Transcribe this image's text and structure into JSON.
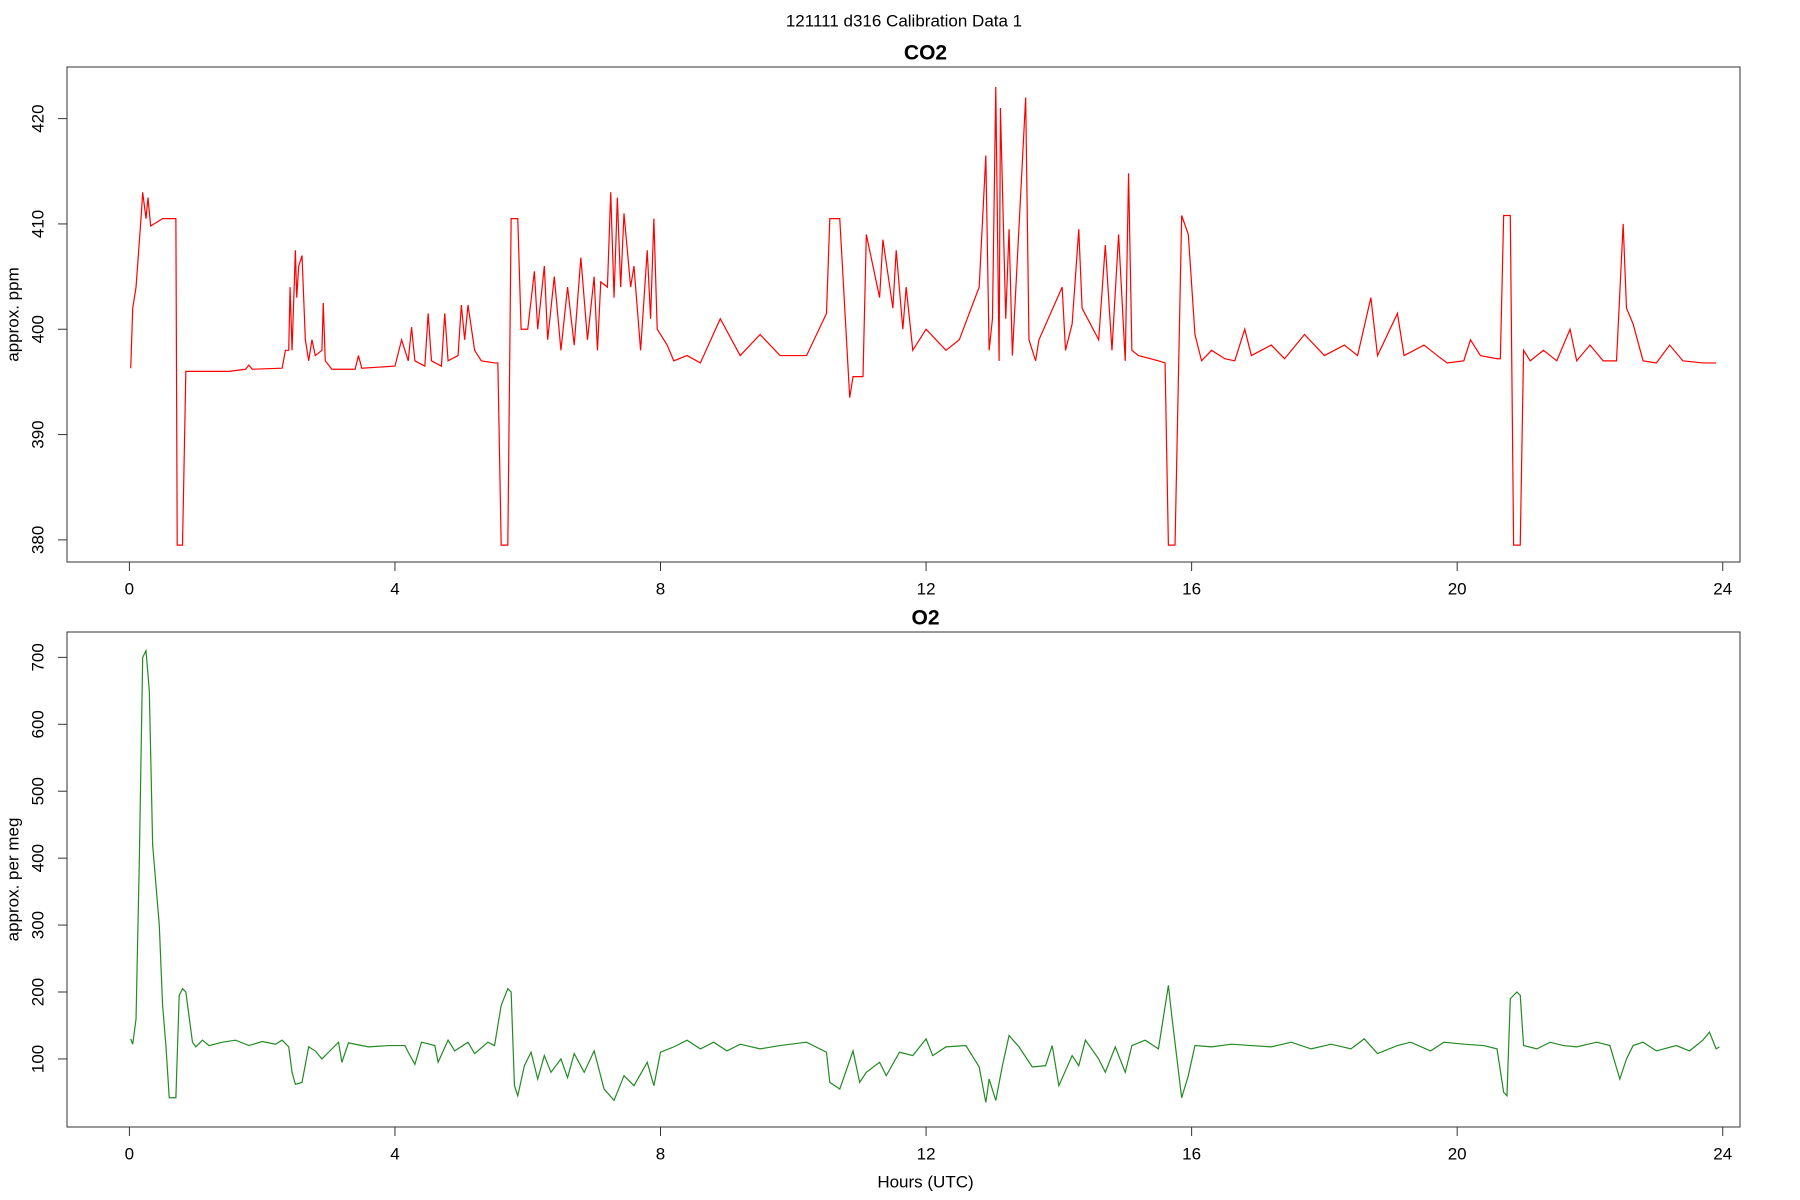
{
  "title": "121111   d316   Calibration Data 1",
  "chart_data": [
    {
      "type": "line",
      "title": "CO2",
      "ylabel": "approx. ppm",
      "color": "#ff0000",
      "xlim": [
        -0.94,
        24.26
      ],
      "xticks": [
        0,
        4,
        8,
        12,
        16,
        20,
        24
      ],
      "ylim": [
        377.9,
        424.9
      ],
      "yticks": [
        380,
        390,
        400,
        410,
        420
      ],
      "x": [
        0.02,
        0.05,
        0.1,
        0.18,
        0.2,
        0.25,
        0.28,
        0.32,
        0.5,
        0.65,
        0.7,
        0.72,
        0.8,
        0.85,
        1.5,
        1.75,
        1.8,
        1.85,
        2.3,
        2.35,
        2.4,
        2.42,
        2.45,
        2.5,
        2.52,
        2.55,
        2.6,
        2.65,
        2.7,
        2.75,
        2.8,
        2.9,
        2.92,
        2.95,
        3.05,
        3.4,
        3.45,
        3.5,
        4.0,
        4.1,
        4.2,
        4.25,
        4.3,
        4.45,
        4.5,
        4.55,
        4.7,
        4.75,
        4.8,
        4.95,
        5.0,
        5.05,
        5.1,
        5.2,
        5.3,
        5.5,
        5.55,
        5.6,
        5.7,
        5.75,
        5.85,
        5.9,
        6.0,
        6.1,
        6.15,
        6.25,
        6.3,
        6.4,
        6.5,
        6.6,
        6.7,
        6.8,
        6.9,
        7.0,
        7.05,
        7.1,
        7.2,
        7.25,
        7.3,
        7.35,
        7.4,
        7.45,
        7.55,
        7.6,
        7.7,
        7.8,
        7.85,
        7.9,
        7.95,
        8.1,
        8.2,
        8.4,
        8.6,
        8.9,
        9.2,
        9.5,
        9.8,
        10.2,
        10.5,
        10.55,
        10.7,
        10.85,
        10.9,
        11.05,
        11.1,
        11.3,
        11.35,
        11.5,
        11.55,
        11.65,
        11.7,
        11.8,
        12.0,
        12.3,
        12.5,
        12.8,
        12.9,
        12.95,
        13.0,
        13.05,
        13.1,
        13.12,
        13.2,
        13.25,
        13.3,
        13.5,
        13.55,
        13.65,
        13.7,
        14.05,
        14.1,
        14.2,
        14.3,
        14.35,
        14.6,
        14.7,
        14.8,
        14.9,
        15.0,
        15.05,
        15.1,
        15.2,
        15.5,
        15.6,
        15.65,
        15.75,
        15.85,
        15.95,
        16.05,
        16.15,
        16.3,
        16.5,
        16.65,
        16.8,
        16.9,
        17.2,
        17.4,
        17.7,
        18.0,
        18.3,
        18.5,
        18.7,
        18.8,
        19.1,
        19.2,
        19.5,
        19.7,
        19.85,
        20.1,
        20.2,
        20.35,
        20.6,
        20.65,
        20.7,
        20.8,
        20.85,
        20.95,
        21.0,
        21.1,
        21.3,
        21.4,
        21.5,
        21.7,
        21.8,
        22.0,
        22.2,
        22.4,
        22.5,
        22.55,
        22.65,
        22.8,
        23.0,
        23.2,
        23.4,
        23.7,
        23.9
      ],
      "values": [
        396.3,
        402,
        404,
        411,
        413,
        410.5,
        412.5,
        409.8,
        410.5,
        410.5,
        410.5,
        379.5,
        379.5,
        396,
        396,
        396.2,
        396.6,
        396.2,
        396.3,
        398,
        398,
        404,
        398,
        407.5,
        403,
        406,
        407,
        399,
        397,
        399,
        397.5,
        398,
        402.5,
        397,
        396.2,
        396.2,
        397.5,
        396.3,
        396.5,
        399,
        397,
        400.2,
        397,
        396.5,
        401.5,
        397,
        396.5,
        401.5,
        397,
        397.5,
        402.3,
        399,
        402.3,
        398,
        397,
        396.8,
        396.8,
        379.5,
        379.5,
        410.5,
        410.5,
        400,
        400,
        405.5,
        400,
        406,
        399,
        405,
        398,
        404,
        398.5,
        406.8,
        399,
        405,
        398,
        404.5,
        404,
        413,
        403,
        412.5,
        404,
        411,
        404,
        406,
        398,
        407.5,
        401,
        410.5,
        400,
        398.5,
        397,
        397.5,
        396.8,
        401,
        397.5,
        399.5,
        397.5,
        397.5,
        401.5,
        410.5,
        410.5,
        393.5,
        395.5,
        395.5,
        409,
        403,
        408.5,
        402,
        407.5,
        400,
        404,
        398,
        400,
        398,
        399,
        404,
        416.5,
        398,
        401,
        423,
        397,
        421,
        401,
        409.5,
        397.5,
        422,
        399,
        397,
        399,
        404,
        398,
        400.5,
        409.5,
        402,
        399,
        408,
        398,
        409,
        397,
        414.8,
        398,
        397.5,
        397,
        396.8,
        379.5,
        379.5,
        410.8,
        409,
        399.5,
        397,
        398,
        397.2,
        397,
        400,
        397.5,
        398.5,
        397.2,
        399.5,
        397.5,
        398.5,
        397.5,
        403,
        397.5,
        401.5,
        397.5,
        398.5,
        397.5,
        396.8,
        397,
        399,
        397.5,
        397.2,
        397.2,
        410.8,
        410.8,
        379.5,
        379.5,
        398,
        397,
        398,
        397.5,
        397,
        400,
        397,
        398.5,
        397,
        397,
        410,
        402,
        400.5,
        397,
        396.8,
        398.5,
        397,
        396.8,
        396.8
      ]
    },
    {
      "type": "line",
      "title": "O2",
      "ylabel": "approx. per meg",
      "xlabel": "Hours (UTC)",
      "color": "#228b22",
      "xlim": [
        -0.94,
        24.26
      ],
      "xticks": [
        0,
        4,
        8,
        12,
        16,
        20,
        24
      ],
      "ylim": [
        -1.7,
        737.9
      ],
      "yticks": [
        100,
        200,
        300,
        400,
        500,
        600,
        700
      ],
      "x": [
        0.02,
        0.05,
        0.1,
        0.15,
        0.2,
        0.25,
        0.3,
        0.35,
        0.45,
        0.5,
        0.55,
        0.6,
        0.7,
        0.75,
        0.8,
        0.85,
        0.95,
        1.0,
        1.1,
        1.2,
        1.4,
        1.6,
        1.8,
        2.0,
        2.2,
        2.3,
        2.4,
        2.45,
        2.5,
        2.6,
        2.7,
        2.8,
        2.9,
        3.0,
        3.15,
        3.2,
        3.3,
        3.6,
        3.9,
        4.15,
        4.2,
        4.3,
        4.4,
        4.6,
        4.65,
        4.8,
        4.9,
        5.1,
        5.2,
        5.4,
        5.5,
        5.6,
        5.7,
        5.75,
        5.8,
        5.85,
        5.95,
        6.05,
        6.15,
        6.25,
        6.35,
        6.5,
        6.6,
        6.7,
        6.85,
        7.0,
        7.15,
        7.3,
        7.45,
        7.6,
        7.8,
        7.9,
        8.0,
        8.2,
        8.4,
        8.6,
        8.8,
        9.0,
        9.2,
        9.5,
        9.8,
        10.2,
        10.5,
        10.55,
        10.7,
        10.9,
        11.0,
        11.1,
        11.3,
        11.4,
        11.6,
        11.8,
        12.0,
        12.1,
        12.3,
        12.6,
        12.8,
        12.9,
        12.95,
        13.05,
        13.15,
        13.25,
        13.4,
        13.6,
        13.8,
        13.9,
        14.0,
        14.2,
        14.3,
        14.4,
        14.6,
        14.7,
        14.85,
        15.0,
        15.1,
        15.3,
        15.5,
        15.65,
        15.7,
        15.85,
        15.95,
        16.05,
        16.3,
        16.6,
        16.9,
        17.2,
        17.5,
        17.8,
        18.1,
        18.4,
        18.6,
        18.8,
        19.1,
        19.3,
        19.6,
        19.8,
        20.1,
        20.4,
        20.6,
        20.7,
        20.75,
        20.8,
        20.9,
        20.95,
        21.0,
        21.2,
        21.4,
        21.6,
        21.8,
        22.1,
        22.3,
        22.45,
        22.55,
        22.65,
        22.8,
        23.0,
        23.3,
        23.5,
        23.7,
        23.8,
        23.9,
        23.95
      ],
      "values": [
        130,
        122,
        160,
        400,
        700,
        710,
        650,
        420,
        300,
        180,
        120,
        42,
        42,
        195,
        205,
        200,
        125,
        118,
        128,
        120,
        125,
        128,
        120,
        126,
        122,
        128,
        118,
        80,
        62,
        65,
        118,
        112,
        100,
        110,
        125,
        95,
        124,
        118,
        120,
        120,
        110,
        92,
        125,
        120,
        95,
        128,
        112,
        125,
        108,
        125,
        120,
        180,
        205,
        200,
        60,
        45,
        90,
        110,
        70,
        105,
        80,
        100,
        72,
        108,
        80,
        112,
        55,
        38,
        75,
        60,
        95,
        60,
        110,
        118,
        128,
        115,
        125,
        112,
        122,
        115,
        120,
        125,
        110,
        65,
        55,
        112,
        65,
        80,
        95,
        75,
        110,
        105,
        130,
        105,
        118,
        120,
        88,
        35,
        70,
        38,
        90,
        135,
        118,
        88,
        90,
        120,
        60,
        105,
        90,
        128,
        100,
        80,
        118,
        80,
        120,
        128,
        115,
        210,
        165,
        42,
        75,
        120,
        118,
        122,
        120,
        118,
        125,
        115,
        122,
        115,
        130,
        108,
        120,
        125,
        112,
        125,
        122,
        120,
        115,
        50,
        45,
        190,
        200,
        195,
        120,
        115,
        125,
        120,
        118,
        125,
        120,
        70,
        100,
        120,
        125,
        112,
        120,
        112,
        128,
        140,
        115,
        118
      ]
    }
  ]
}
